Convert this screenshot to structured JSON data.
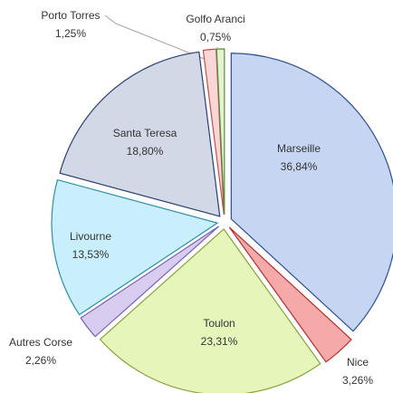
{
  "chart_data": {
    "type": "pie",
    "categories": [
      "Marseille",
      "Nice",
      "Toulon",
      "Autres Corse",
      "Livourne",
      "Santa Teresa",
      "Porto Torres",
      "Golfo Aranci"
    ],
    "values": [
      36.84,
      3.26,
      23.31,
      2.26,
      13.53,
      18.8,
      1.25,
      0.75
    ],
    "value_labels": [
      "36,84%",
      "3,26%",
      "23,31%",
      "2,26%",
      "13,53%",
      "18,80%",
      "1,25%",
      "0,75%"
    ],
    "colors": [
      "#c6d6f2",
      "#f5a9a9",
      "#e6f6bb",
      "#d8ccf0",
      "#c8effb",
      "#d2d8e6",
      "#f9d7d7",
      "#e4f3cf"
    ],
    "edge_colors": [
      "#2e4e8e",
      "#b03030",
      "#8aa040",
      "#7a62b0",
      "#3090a8",
      "#2a3e6e",
      "#c05050",
      "#5a8a3a"
    ]
  }
}
